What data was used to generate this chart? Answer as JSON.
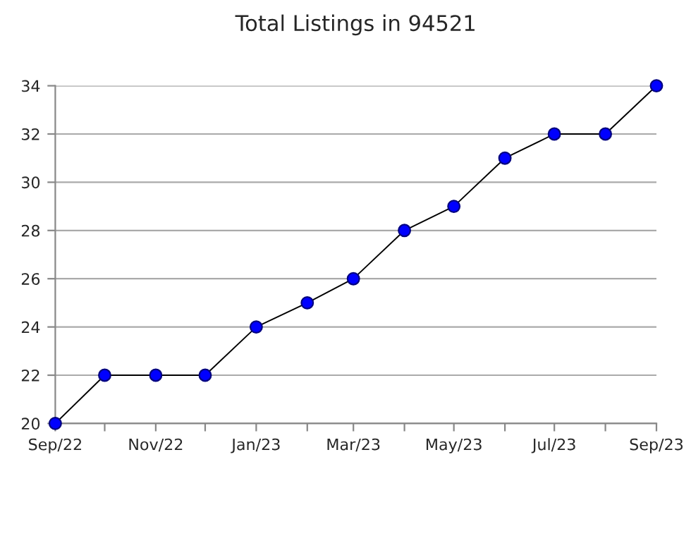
{
  "chart_data": {
    "type": "line",
    "title": "Total Listings in 94521",
    "x": [
      "2022-09",
      "2022-10",
      "2022-11",
      "2022-12",
      "2023-01",
      "2023-02",
      "2023-03",
      "2023-04",
      "2023-05",
      "2023-06",
      "2023-07",
      "2023-08",
      "2023-09"
    ],
    "series": [
      {
        "color": "#0000ff",
        "values": [
          20,
          22,
          22,
          22,
          24,
          25,
          26,
          28,
          29,
          31,
          32,
          32,
          34
        ]
      }
    ],
    "xlim": [
      "2022-09",
      "2023-09"
    ],
    "xticks": [
      {
        "value": "2022-09",
        "label": "Sep/22"
      },
      {
        "value": "2022-10",
        "label": null
      },
      {
        "value": "2022-11",
        "label": "Nov/22"
      },
      {
        "value": "2022-12",
        "label": null
      },
      {
        "value": "2023-01",
        "label": "Jan/23"
      },
      {
        "value": "2023-02",
        "label": null
      },
      {
        "value": "2023-03",
        "label": "Mar/23"
      },
      {
        "value": "2023-04",
        "label": null
      },
      {
        "value": "2023-05",
        "label": "May/23"
      },
      {
        "value": "2023-06",
        "label": null
      },
      {
        "value": "2023-07",
        "label": "Jul/23"
      },
      {
        "value": "2023-08",
        "label": null
      },
      {
        "value": "2023-09",
        "label": "Sep/23"
      }
    ],
    "ylim": [
      20,
      34
    ],
    "yticks": [
      20,
      22,
      24,
      26,
      28,
      30,
      32,
      34
    ],
    "grid": "y",
    "marker": "circle",
    "line_style": "solid"
  }
}
